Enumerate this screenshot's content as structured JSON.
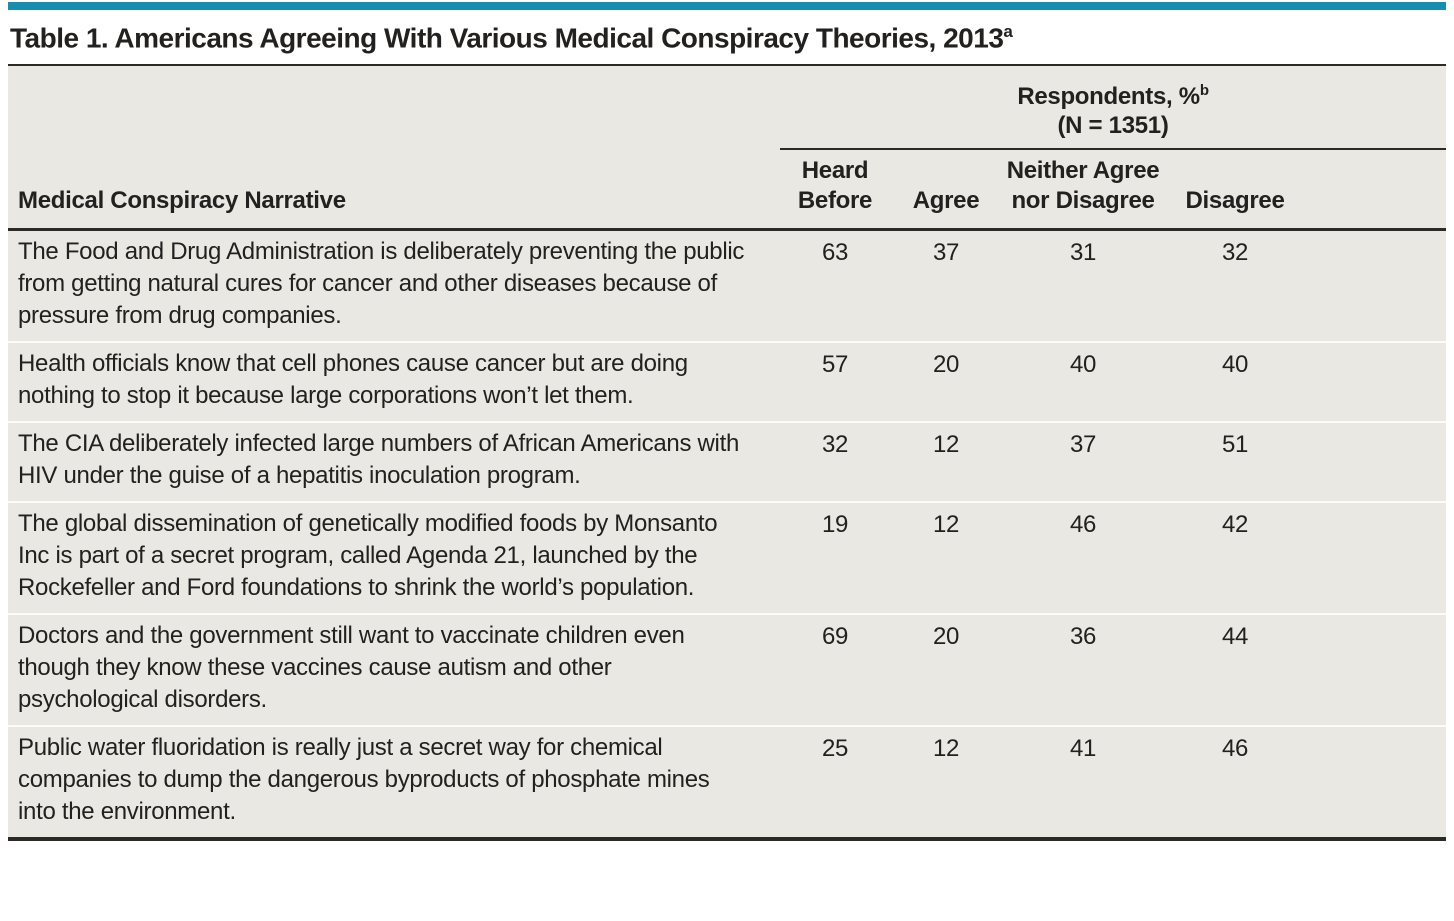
{
  "accent_color": "#178eb1",
  "table_background": "#eae8e2",
  "title": {
    "text": "Table 1. Americans Agreeing With Various Medical Conspiracy Theories, 2013",
    "superscript": "a"
  },
  "header": {
    "group": {
      "line1_text": "Respondents, %",
      "line1_sup": "b",
      "line2": "(N = 1351)"
    },
    "narrative_col": "Medical Conspiracy Narrative",
    "heard_before": {
      "line1": "Heard",
      "line2": "Before"
    },
    "agree": "Agree",
    "neither": {
      "line1": "Neither Agree",
      "line2": "nor Disagree"
    },
    "disagree": "Disagree"
  },
  "chart_data": {
    "type": "table",
    "title": "Table 1. Americans Agreeing With Various Medical Conspiracy Theories, 2013",
    "group_header": "Respondents, % (N = 1351)",
    "columns": [
      "Medical Conspiracy Narrative",
      "Heard Before",
      "Agree",
      "Neither Agree nor Disagree",
      "Disagree"
    ],
    "rows": [
      {
        "narrative": "The Food and Drug Administration is deliberately preventing the public from getting natural cures for cancer and other diseases because of pressure from drug companies.",
        "values": [
          63,
          37,
          31,
          32
        ]
      },
      {
        "narrative": "Health officials know that cell phones cause cancer but are doing nothing to stop it because large corporations won’t let them.",
        "values": [
          57,
          20,
          40,
          40
        ]
      },
      {
        "narrative": "The CIA deliberately infected large numbers of African Americans with HIV under the guise of a hepatitis inoculation program.",
        "values": [
          32,
          12,
          37,
          51
        ]
      },
      {
        "narrative": "The global dissemination of genetically modified foods by Monsanto Inc is part of a secret program, called Agenda 21, launched by the Rockefeller and Ford foundations to shrink the world’s population.",
        "values": [
          19,
          12,
          46,
          42
        ]
      },
      {
        "narrative": "Doctors and the government still want to vaccinate children even though they know these vaccines cause autism and other psychological disorders.",
        "values": [
          69,
          20,
          36,
          44
        ]
      },
      {
        "narrative": "Public water fluoridation is really just a secret way for chemical companies to dump the dangerous byproducts of phosphate mines into the environment.",
        "values": [
          25,
          12,
          41,
          46
        ]
      }
    ]
  }
}
